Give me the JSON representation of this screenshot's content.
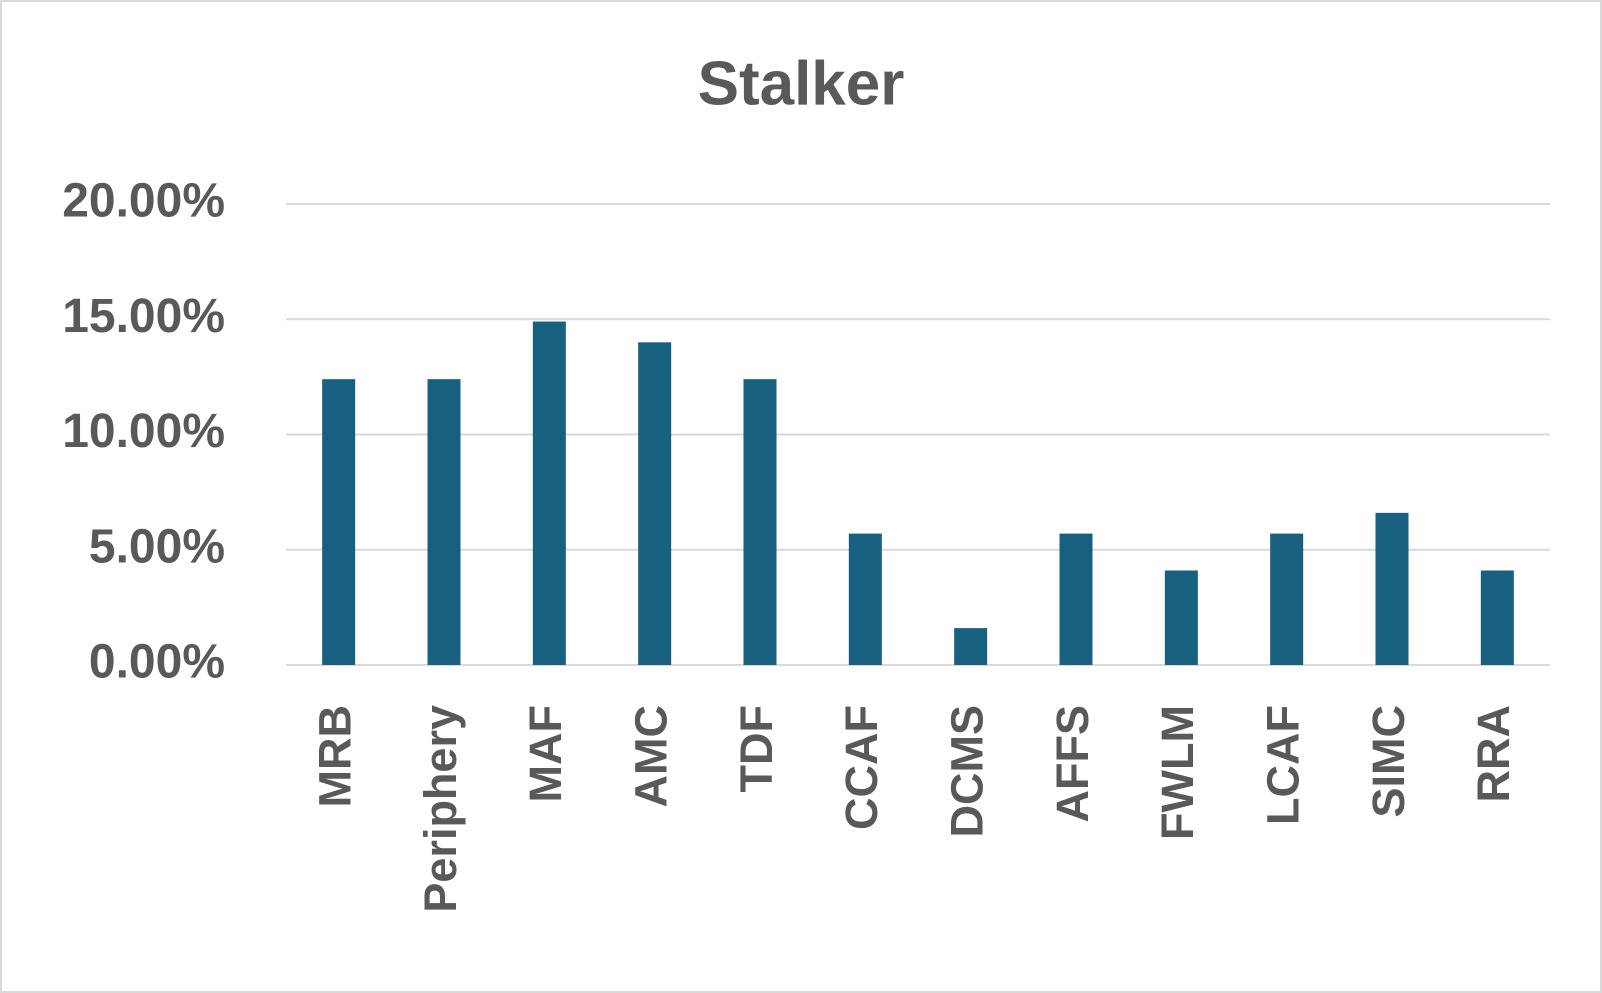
{
  "chart_data": {
    "type": "bar",
    "title": "Stalker",
    "categories": [
      "MRB",
      "Periphery",
      "MAF",
      "AMC",
      "TDF",
      "CCAF",
      "DCMS",
      "AFFS",
      "FWLM",
      "LCAF",
      "SIMC",
      "RRA"
    ],
    "values": [
      12.4,
      12.4,
      14.9,
      14.0,
      12.4,
      5.7,
      1.6,
      5.7,
      4.1,
      5.7,
      6.6,
      4.1
    ],
    "color": "#17607f",
    "ylim": [
      0,
      20
    ],
    "yticks": [
      {
        "value": 0,
        "label": "0.00%"
      },
      {
        "value": 5,
        "label": "5.00%"
      },
      {
        "value": 10,
        "label": "10.00%"
      },
      {
        "value": 15,
        "label": "15.00%"
      },
      {
        "value": 20,
        "label": "20.00%"
      }
    ],
    "grid": true
  }
}
